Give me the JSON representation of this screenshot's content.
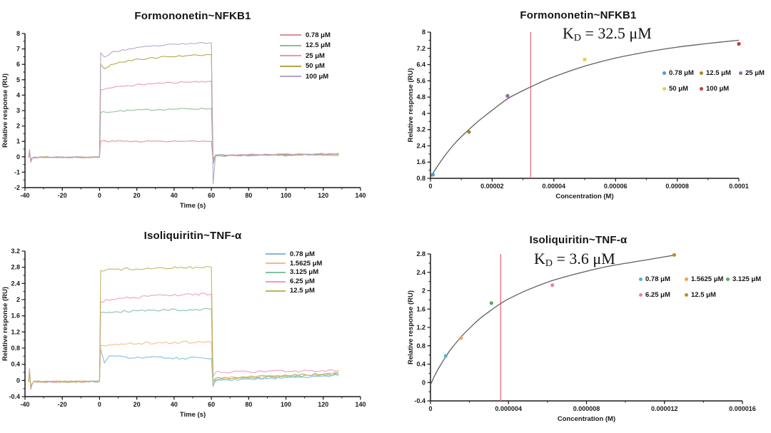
{
  "figure": {
    "background": "#ffffff"
  },
  "chart_data": [
    {
      "id": "formononetin-sensorgram",
      "type": "line",
      "variant": "sensorgram",
      "title": "Formononetin~NFKB1",
      "xlabel": "Time (s)",
      "ylabel": "Relative response (RU)",
      "xlim": [
        -40,
        140
      ],
      "x_minor_step": 10,
      "xticks": [
        {
          "v": -40,
          "label": "-40"
        },
        {
          "v": -20,
          "label": "-20"
        },
        {
          "v": 0,
          "label": "0"
        },
        {
          "v": 20,
          "label": "20"
        },
        {
          "v": 40,
          "label": "40"
        },
        {
          "v": 60,
          "label": "60"
        },
        {
          "v": 80,
          "label": "80"
        },
        {
          "v": 100,
          "label": "100"
        },
        {
          "v": 120,
          "label": "120"
        },
        {
          "v": 140,
          "label": "140"
        }
      ],
      "ylim": [
        -2,
        8
      ],
      "y_minor_step": 0.5,
      "yticks": [
        {
          "v": -2,
          "label": "-2"
        },
        {
          "v": -1,
          "label": "-1"
        },
        {
          "v": 0,
          "label": "0"
        },
        {
          "v": 1,
          "label": "1"
        },
        {
          "v": 2,
          "label": "2"
        },
        {
          "v": 3,
          "label": "3"
        },
        {
          "v": 4,
          "label": "4"
        },
        {
          "v": 5,
          "label": "5"
        },
        {
          "v": 6,
          "label": "6"
        },
        {
          "v": 7,
          "label": "7"
        },
        {
          "v": 8,
          "label": "8"
        }
      ],
      "phases": {
        "start": -38,
        "assoc_start": 0,
        "dissoc_start": 60,
        "end": 130
      },
      "noise": 0.05,
      "series": [
        {
          "name": "0.78 μM",
          "color": "#df9093",
          "assoc_start": 1.02,
          "assoc_end": 1.0,
          "spike": 0.5,
          "undershoot": -0.35,
          "dissoc_start_level": 0.08,
          "dissoc_end_level": 0.16,
          "seed": 3
        },
        {
          "name": "12.5 μM",
          "color": "#8cc096",
          "assoc_start": 2.88,
          "assoc_end": 3.13,
          "spike": 0.2,
          "undershoot": -0.5,
          "dissoc_start_level": 0.05,
          "dissoc_end_level": 0.12,
          "seed": 7
        },
        {
          "name": "25 μM",
          "color": "#e895be",
          "assoc_start": 4.35,
          "assoc_end": 4.9,
          "spike": 0.45,
          "undershoot": -0.25,
          "dissoc_start_level": 0.1,
          "dissoc_end_level": 0.18,
          "seed": 11
        },
        {
          "name": "50 μM",
          "color": "#b4a446",
          "assoc_start": 5.85,
          "assoc_end": 6.63,
          "spike": 0.25,
          "dip": 0.15,
          "undershoot": -0.15,
          "dissoc_start_level": 0.1,
          "dissoc_end_level": 0.16,
          "seed": 19
        },
        {
          "name": "100 μM",
          "color": "#b5a2c9",
          "assoc_start": 6.6,
          "assoc_end": 7.4,
          "spike": 0.3,
          "dip": 0.14,
          "undershoot": -1.78,
          "dissoc_start_level": 0.12,
          "dissoc_end_level": 0.2,
          "seed": 23
        }
      ]
    },
    {
      "id": "formononetin-affinity",
      "type": "scatter",
      "variant": "affinity",
      "title": "Formononetin~NFKB1",
      "kd": {
        "symbol": "K",
        "sub": "D",
        "value": "= 32.5 μM"
      },
      "xlabel": "Concentration  (M)",
      "ylabel": "Relative response (RU)",
      "xlim": [
        0,
        0.0001
      ],
      "x_minor_step": 1e-05,
      "xticks": [
        {
          "v": 0,
          "label": "0"
        },
        {
          "v": 2e-05,
          "label": "0.00002"
        },
        {
          "v": 4e-05,
          "label": "0.00004"
        },
        {
          "v": 6e-05,
          "label": "0.00006"
        },
        {
          "v": 8e-05,
          "label": "0.00008"
        },
        {
          "v": 0.0001,
          "label": "0.0001"
        }
      ],
      "ylim": [
        0.8,
        8
      ],
      "y_minor_step": 0.4,
      "yticks": [
        {
          "v": 0.8,
          "label": "0.8"
        },
        {
          "v": 1.6,
          "label": "1.6"
        },
        {
          "v": 2.4,
          "label": "2.4"
        },
        {
          "v": 3.2,
          "label": "3.2"
        },
        {
          "v": 4,
          "label": "4"
        },
        {
          "v": 4.8,
          "label": "4.8"
        },
        {
          "v": 5.6,
          "label": "5.6"
        },
        {
          "v": 6.4,
          "label": "6.4"
        },
        {
          "v": 7.2,
          "label": "7.2"
        },
        {
          "v": 8,
          "label": "8"
        }
      ],
      "curve_color": "#5f5f5f",
      "kd_line": {
        "x": 3.25e-05,
        "color": "#e2707c"
      },
      "fit_curve": [
        [
          0,
          0.85
        ],
        [
          2.5e-06,
          1.45
        ],
        [
          5e-06,
          1.98
        ],
        [
          7.5e-06,
          2.45
        ],
        [
          1e-05,
          2.85
        ],
        [
          1.5e-05,
          3.55
        ],
        [
          2e-05,
          4.15
        ],
        [
          2.5e-05,
          4.72
        ],
        [
          3e-05,
          5.12
        ],
        [
          3.5e-05,
          5.48
        ],
        [
          4e-05,
          5.8
        ],
        [
          5e-05,
          6.32
        ],
        [
          6e-05,
          6.72
        ],
        [
          7e-05,
          7.02
        ],
        [
          8e-05,
          7.26
        ],
        [
          9e-05,
          7.44
        ],
        [
          0.0001,
          7.6
        ]
      ],
      "points": [
        {
          "name": "0.78 μM",
          "x": 7.8e-07,
          "y": 0.98,
          "color": "#4e9ad2"
        },
        {
          "name": "12.5 μM",
          "x": 1.25e-05,
          "y": 3.08,
          "color": "#a5882d"
        },
        {
          "name": "25 μM",
          "x": 2.5e-05,
          "y": 4.86,
          "color": "#95689e"
        },
        {
          "name": "50 μM",
          "x": 5e-05,
          "y": 6.65,
          "color": "#e2d14c"
        },
        {
          "name": "100 μM",
          "x": 0.0001,
          "y": 7.42,
          "color": "#c13f36"
        }
      ],
      "legend_rows": [
        [
          "0.78 μM",
          "12.5 μM",
          "25 μM"
        ],
        [
          "50 μM",
          "100 μM"
        ]
      ]
    },
    {
      "id": "isoliquiritin-sensorgram",
      "type": "line",
      "variant": "sensorgram",
      "title": "Isoliquiritin~TNF-α",
      "xlabel": "Time (s)",
      "ylabel": "Relative response (RU)",
      "xlim": [
        -40,
        140
      ],
      "x_minor_step": 10,
      "xticks": [
        {
          "v": -40,
          "label": "-40"
        },
        {
          "v": -20,
          "label": "-20"
        },
        {
          "v": 0,
          "label": "0"
        },
        {
          "v": 20,
          "label": "20"
        },
        {
          "v": 40,
          "label": "40"
        },
        {
          "v": 60,
          "label": "60"
        },
        {
          "v": 80,
          "label": "80"
        },
        {
          "v": 100,
          "label": "100"
        },
        {
          "v": 120,
          "label": "120"
        },
        {
          "v": 140,
          "label": "140"
        }
      ],
      "ylim": [
        -0.4,
        3.2
      ],
      "y_minor_step": 0.2,
      "yticks": [
        {
          "v": -0.4,
          "label": "-0.4"
        },
        {
          "v": 0,
          "label": "0"
        },
        {
          "v": 0.4,
          "label": "0.4"
        },
        {
          "v": 0.8,
          "label": "0.8"
        },
        {
          "v": 1.2,
          "label": "1.2"
        },
        {
          "v": 1.6,
          "label": "1.6"
        },
        {
          "v": 2,
          "label": "2"
        },
        {
          "v": 2.4,
          "label": "2.4"
        },
        {
          "v": 2.8,
          "label": "2.8"
        },
        {
          "v": 3.2,
          "label": "3.2"
        }
      ],
      "phases": {
        "start": -38,
        "assoc_start": 0,
        "dissoc_start": 60,
        "end": 130
      },
      "noise": 0.03,
      "series": [
        {
          "name": "0.78 μM",
          "color": "#7fb9dc",
          "assoc_start": 0.6,
          "assoc_end": 0.55,
          "spike": 0.3,
          "dip": 0.18,
          "undershoot": -0.12,
          "dissoc_start_level": -0.02,
          "dissoc_end_level": 0.13,
          "seed": 31
        },
        {
          "name": "1.5625 μM",
          "color": "#f3bd7c",
          "assoc_start": 0.86,
          "assoc_end": 0.95,
          "spike": 0.25,
          "undershoot": -0.05,
          "dissoc_start_level": 0.05,
          "dissoc_end_level": 0.18,
          "seed": 37
        },
        {
          "name": "3.125 μM",
          "color": "#82c29d",
          "assoc_start": 1.68,
          "assoc_end": 1.76,
          "spike": 0.2,
          "undershoot": -0.15,
          "dissoc_start_level": 0.02,
          "dissoc_end_level": 0.15,
          "seed": 41
        },
        {
          "name": "6.25 μM",
          "color": "#ee9cba",
          "assoc_start": 1.95,
          "assoc_end": 2.14,
          "spike": 0.3,
          "undershoot": 0.1,
          "dissoc_start_level": 0.2,
          "dissoc_end_level": 0.25,
          "seed": 43
        },
        {
          "name": "12.5 μM",
          "color": "#bfb35e",
          "assoc_start": 2.72,
          "assoc_end": 2.8,
          "spike": 0.2,
          "undershoot": -0.02,
          "dissoc_start_level": 0.05,
          "dissoc_end_level": 0.18,
          "seed": 47
        }
      ]
    },
    {
      "id": "isoliquiritin-affinity",
      "type": "scatter",
      "variant": "affinity",
      "title": "Isoliquiritin~TNF-α",
      "kd": {
        "symbol": "K",
        "sub": "D",
        "value": "= 3.6 μM"
      },
      "xlabel": "Concentration  (M)",
      "ylabel": "Relative response (RU)",
      "xlim": [
        0,
        1.6e-05
      ],
      "x_minor_step": 2e-06,
      "xticks": [
        {
          "v": 0,
          "label": "0"
        },
        {
          "v": 4e-06,
          "label": "0.000004"
        },
        {
          "v": 8e-06,
          "label": "0.000008"
        },
        {
          "v": 1.2e-05,
          "label": "0.000012"
        },
        {
          "v": 1.6e-05,
          "label": "0.000016"
        }
      ],
      "ylim": [
        -0.4,
        2.8
      ],
      "y_minor_step": 0.2,
      "yticks": [
        {
          "v": -0.4,
          "label": "-0.4"
        },
        {
          "v": 0,
          "label": "0"
        },
        {
          "v": 0.4,
          "label": "0.4"
        },
        {
          "v": 0.8,
          "label": "0.8"
        },
        {
          "v": 1.2,
          "label": "1.2"
        },
        {
          "v": 1.6,
          "label": "1.6"
        },
        {
          "v": 2,
          "label": "2"
        },
        {
          "v": 2.4,
          "label": "2.4"
        },
        {
          "v": 2.8,
          "label": "2.8"
        }
      ],
      "curve_color": "#5f5f5f",
      "kd_line": {
        "x": 3.6e-06,
        "color": "#ee6a82"
      },
      "fit_curve": [
        [
          0,
          -0.05
        ],
        [
          2.5e-07,
          0.18
        ],
        [
          5e-07,
          0.37
        ],
        [
          7.8e-07,
          0.56
        ],
        [
          1e-06,
          0.7
        ],
        [
          1.5625e-06,
          0.99
        ],
        [
          2e-06,
          1.18
        ],
        [
          2.5e-06,
          1.38
        ],
        [
          3.125e-06,
          1.58
        ],
        [
          3.6e-06,
          1.72
        ],
        [
          4e-06,
          1.82
        ],
        [
          5e-06,
          2.02
        ],
        [
          6.25e-06,
          2.22
        ],
        [
          7.5e-06,
          2.37
        ],
        [
          9e-06,
          2.52
        ],
        [
          1.05e-05,
          2.63
        ],
        [
          1.15e-05,
          2.7
        ],
        [
          1.26e-05,
          2.78
        ]
      ],
      "points": [
        {
          "name": "0.78 μM",
          "x": 7.8e-07,
          "y": 0.58,
          "color": "#55b0cf"
        },
        {
          "name": "1.5625 μM",
          "x": 1.5625e-06,
          "y": 0.97,
          "color": "#f0a24e"
        },
        {
          "name": "3.125 μM",
          "x": 3.125e-06,
          "y": 1.73,
          "color": "#55a967"
        },
        {
          "name": "6.25 μM",
          "x": 6.25e-06,
          "y": 2.12,
          "color": "#ee81a6"
        },
        {
          "name": "12.5 μM",
          "x": 1.25e-05,
          "y": 2.78,
          "color": "#bb8c2b"
        }
      ],
      "legend_rows": [
        [
          "0.78 μM",
          "1.5625 μM",
          "3.125 μM"
        ],
        [
          "6.25 μM",
          "12.5 μM"
        ]
      ]
    }
  ]
}
